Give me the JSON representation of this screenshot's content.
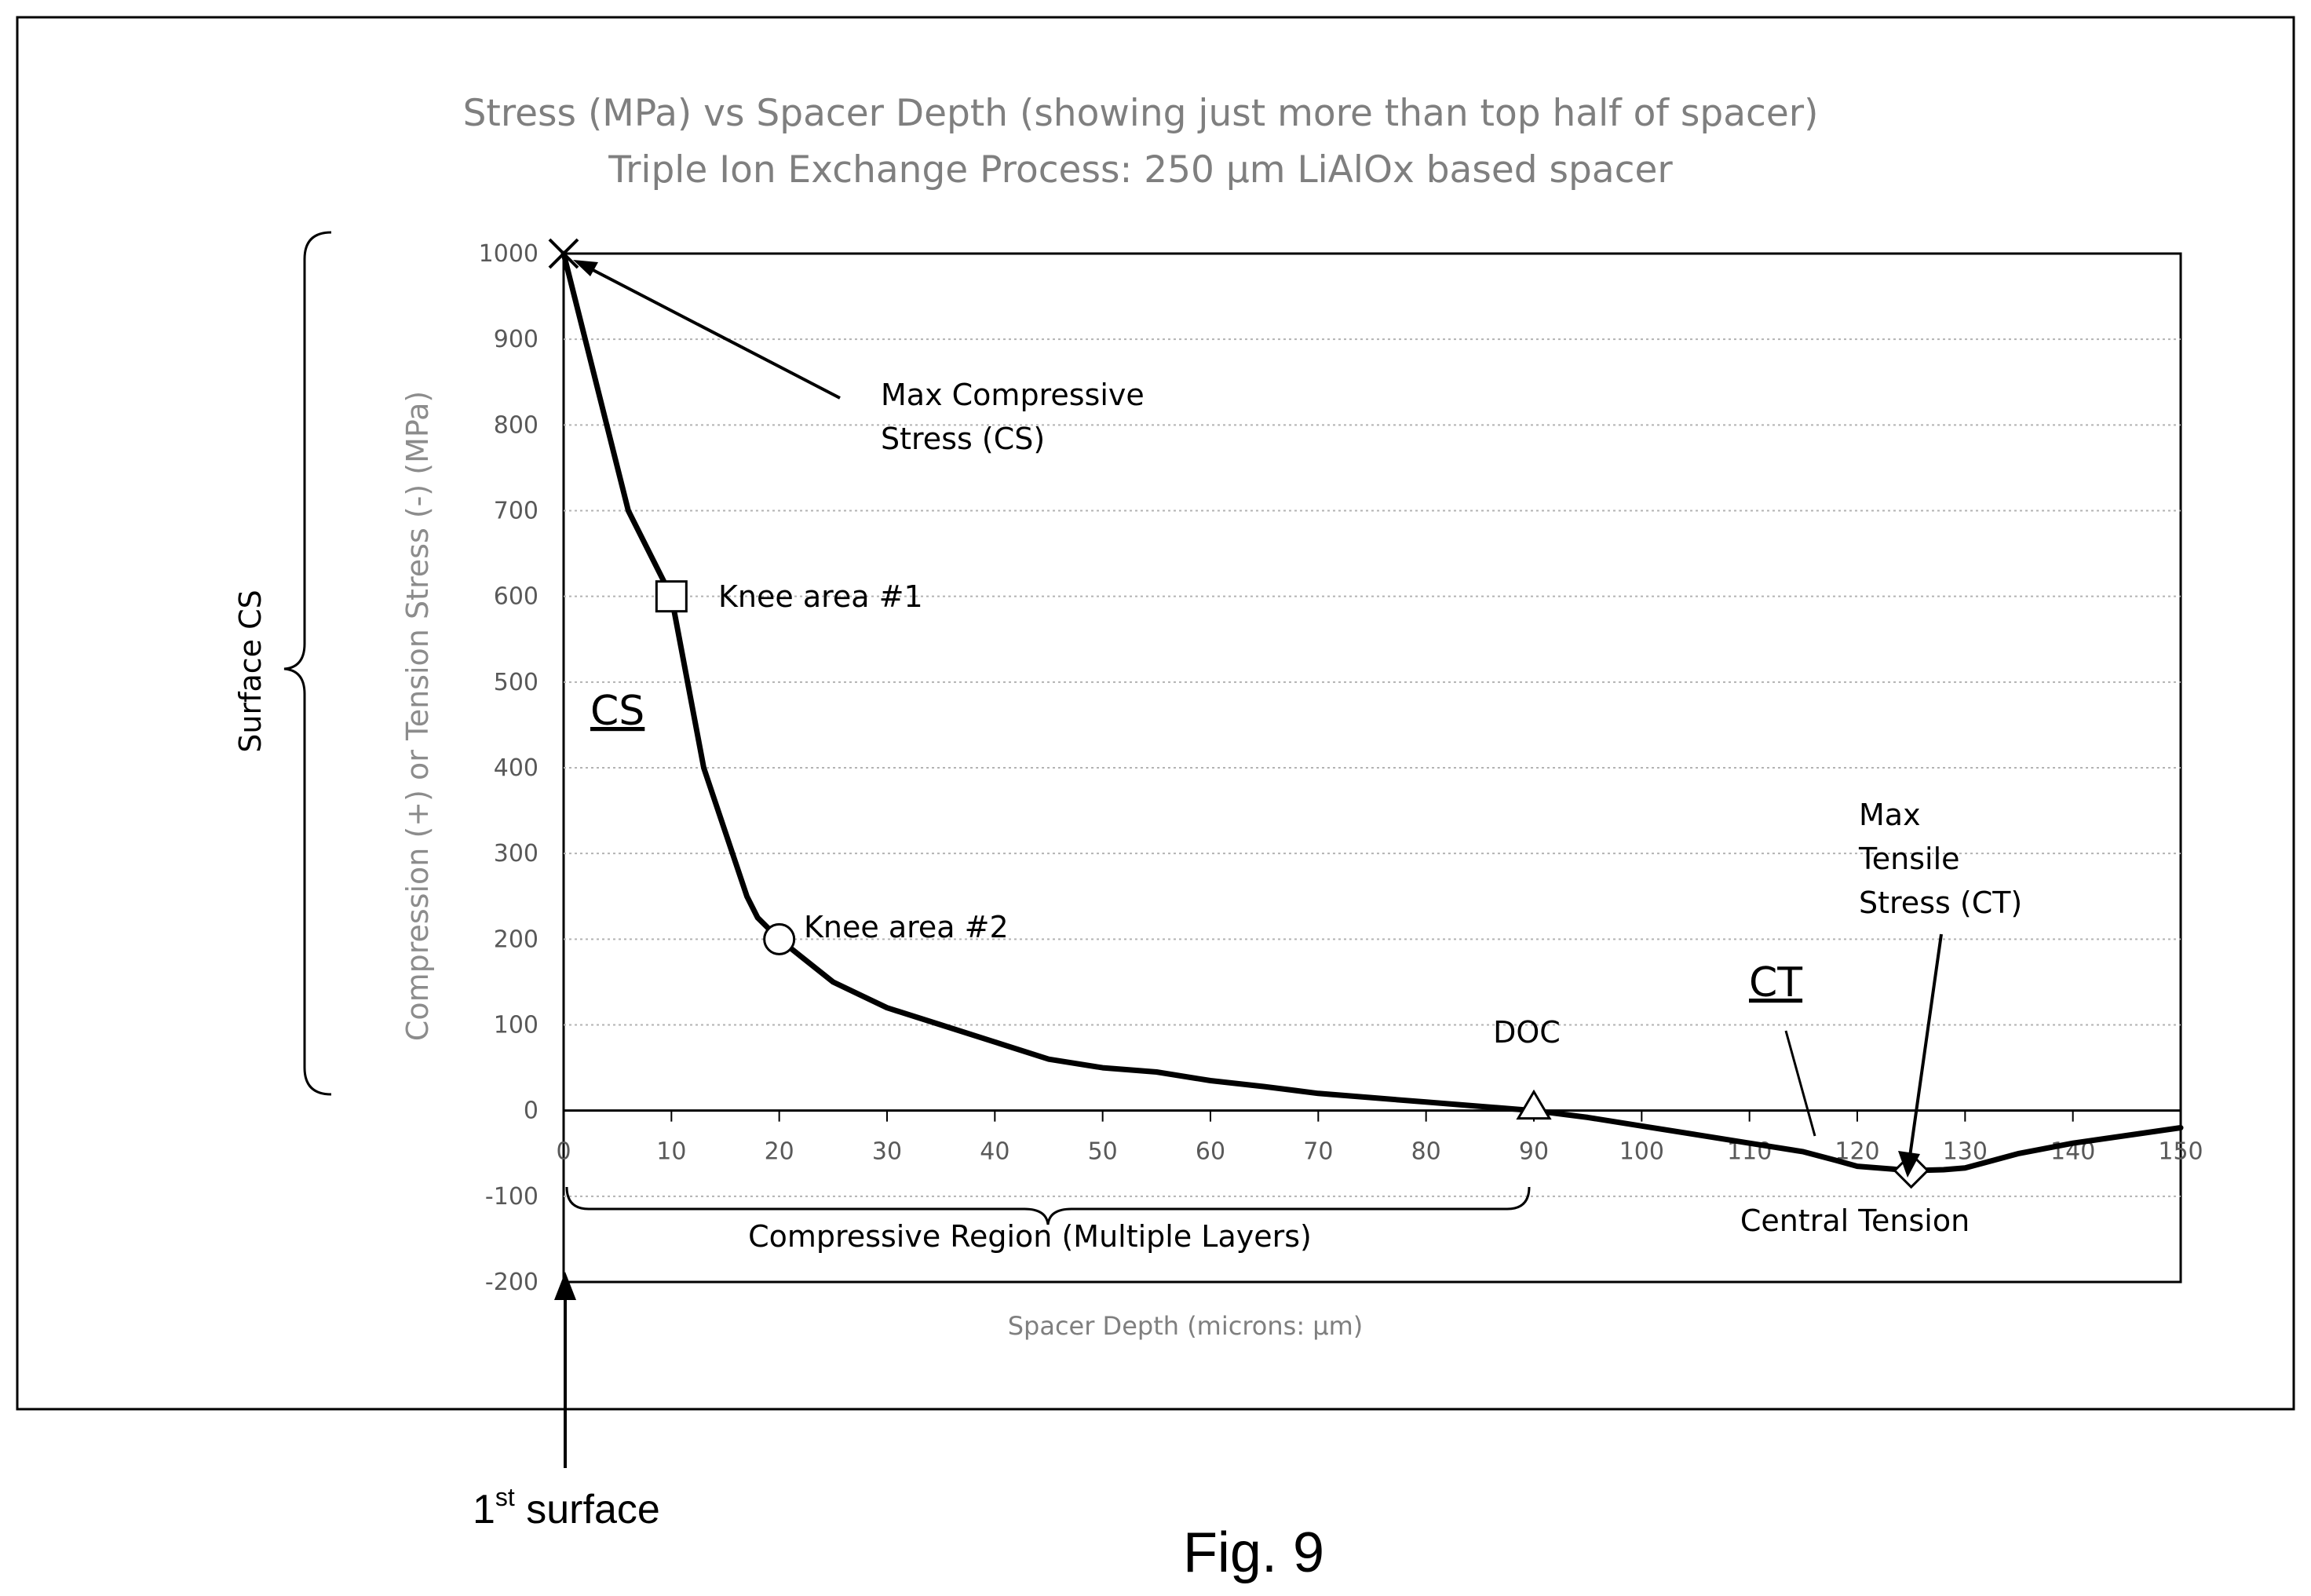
{
  "chart_data": {
    "type": "line",
    "title": "Stress (MPa) vs Spacer Depth (showing just more than top half of spacer)",
    "subtitle": "Triple Ion Exchange Process: 250 µm LiAlOx based spacer",
    "xlabel": "Spacer Depth (microns:  µm)",
    "ylabel": "Compression (+) or Tension Stress  (-) (MPa)",
    "xlim": [
      0,
      150
    ],
    "ylim": [
      -200,
      1000
    ],
    "x_ticks": [
      0,
      10,
      20,
      30,
      40,
      50,
      60,
      70,
      80,
      90,
      100,
      110,
      120,
      130,
      140,
      150
    ],
    "y_ticks": [
      1000,
      900,
      800,
      700,
      600,
      500,
      400,
      300,
      200,
      100,
      0,
      -100,
      -200
    ],
    "grid": true,
    "series": [
      {
        "x": [
          0,
          2,
          6,
          10,
          13,
          17,
          18,
          20,
          25,
          30,
          35,
          40,
          45,
          50,
          55,
          60,
          65,
          70,
          75,
          80,
          85,
          90,
          95,
          100,
          105,
          110,
          115,
          118,
          120,
          123,
          125,
          128,
          130,
          135,
          140,
          150
        ],
        "y": [
          1000,
          900,
          700,
          600,
          400,
          250,
          225,
          200,
          150,
          120,
          100,
          80,
          60,
          50,
          45,
          35,
          28,
          20,
          15,
          10,
          5,
          0,
          -8,
          -18,
          -28,
          -38,
          -48,
          -58,
          -65,
          -68,
          -70,
          -69,
          -67,
          -50,
          -38,
          -20
        ]
      }
    ],
    "markers": [
      {
        "shape": "x",
        "x": 0,
        "y": 1000
      },
      {
        "shape": "square",
        "x": 10,
        "y": 600
      },
      {
        "shape": "circle",
        "x": 20,
        "y": 200
      },
      {
        "shape": "triangle",
        "x": 90,
        "y": 0
      },
      {
        "shape": "diamond",
        "x": 125,
        "y": -70
      }
    ],
    "annotations": {
      "max_cs": [
        "Max Compressive",
        "Stress (CS)"
      ],
      "knee1": "Knee area #1",
      "knee2": "Knee area #2",
      "cs": "CS",
      "ct": "CT",
      "doc": "DOC",
      "max_ct": [
        "Max",
        "Tensile",
        "Stress (CT)"
      ],
      "central_tension": "Central Tension",
      "compressive_region": "Compressive Region (Multiple Layers)",
      "surface_cs": "Surface CS"
    }
  },
  "figure": {
    "label": "Fig. 9",
    "surface_label": "1",
    "surface_sup": "st",
    "surface_rest": " surface"
  }
}
